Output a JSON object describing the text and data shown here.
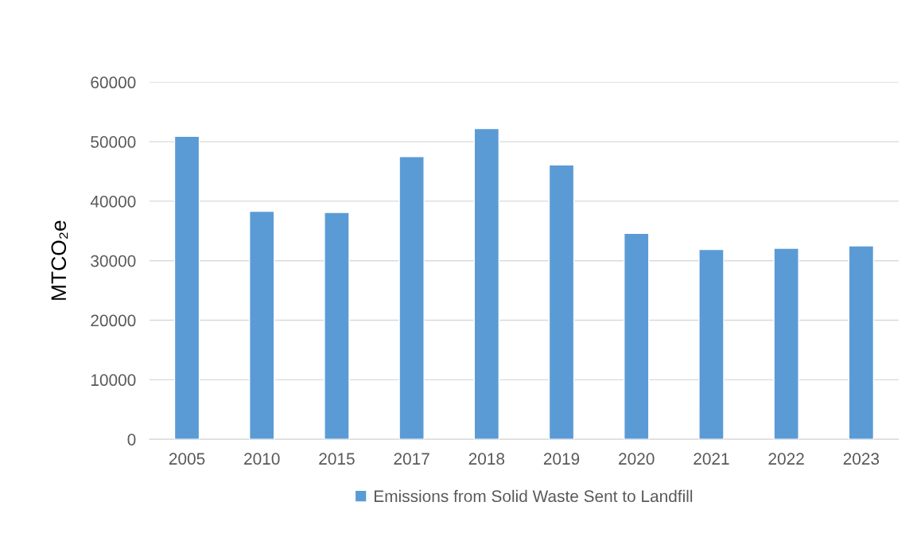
{
  "chart_data": {
    "type": "bar",
    "ylabel": "MTCO₂e",
    "categories": [
      "2005",
      "2010",
      "2015",
      "2017",
      "2018",
      "2019",
      "2020",
      "2021",
      "2022",
      "2023"
    ],
    "series": [
      {
        "name": "Emissions from Solid Waste Sent to Landfill",
        "color": "#5b9bd5",
        "values": [
          50900,
          38300,
          38100,
          47500,
          52200,
          46100,
          34600,
          31900,
          32100,
          32500
        ]
      }
    ],
    "ylim": [
      0,
      60000
    ],
    "yticks": [
      0,
      10000,
      20000,
      30000,
      40000,
      50000,
      60000
    ],
    "grid": "y",
    "legend": "bottom"
  }
}
